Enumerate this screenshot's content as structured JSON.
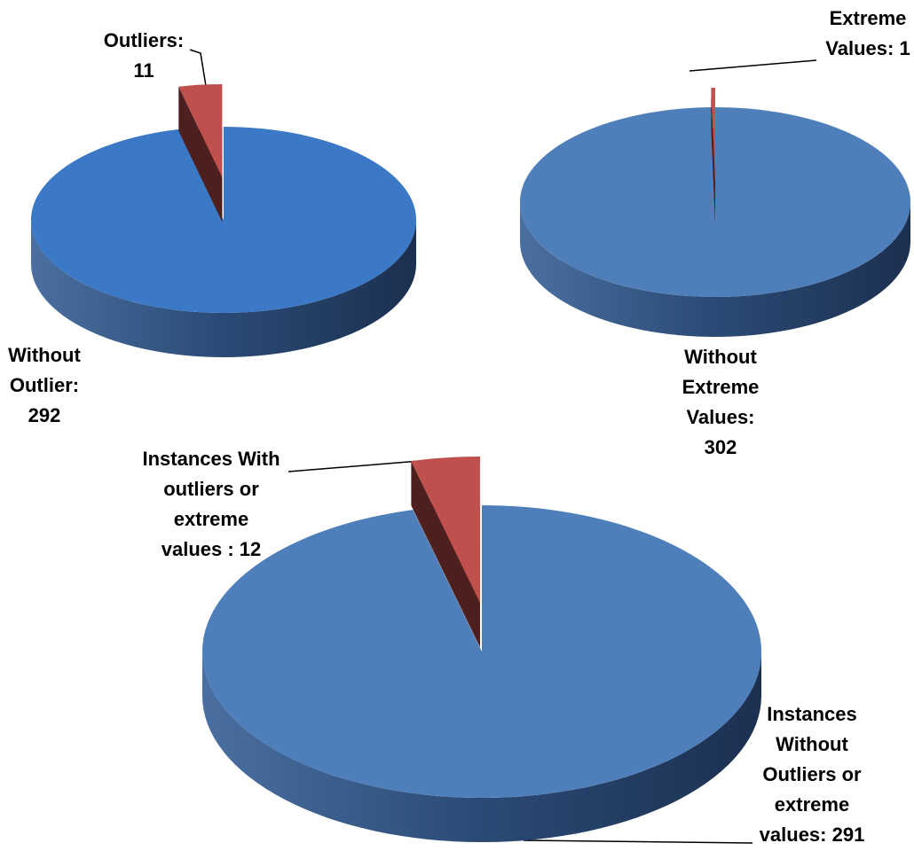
{
  "chart_data": [
    {
      "type": "pie",
      "values": [
        11,
        292
      ],
      "value_labels": [
        "Outliers:\n11",
        "Without\nOutlier:\n292"
      ],
      "colors": [
        "#c0504d",
        "#3b78c6"
      ]
    },
    {
      "type": "pie",
      "values": [
        1,
        302
      ],
      "value_labels": [
        "Extreme\nValues: 1",
        "Without\nExtreme\nValues:\n302"
      ],
      "colors": [
        "#c0504d",
        "#4f7fba"
      ]
    },
    {
      "type": "pie",
      "values": [
        12,
        291
      ],
      "value_labels": [
        "Instances With\noutliers or\nextreme\nvalues : 12",
        "Instances\nWithout\nOutliers or\nextreme\nvalues: 291"
      ],
      "colors": [
        "#c0504d",
        "#4f7fba"
      ]
    }
  ]
}
